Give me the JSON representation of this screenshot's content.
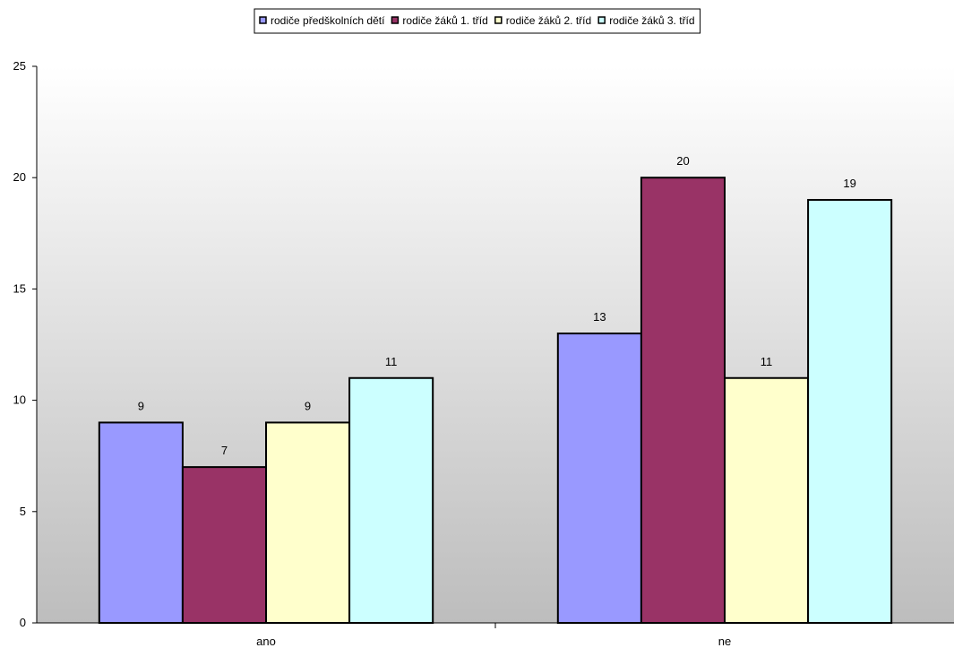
{
  "chart_data": {
    "type": "bar",
    "categories": [
      "ano",
      "ne"
    ],
    "series": [
      {
        "name": "rodiče předškolních dětí",
        "values": [
          9,
          13
        ],
        "color": "#9999FF"
      },
      {
        "name": "rodiče žáků 1. tříd",
        "values": [
          7,
          20
        ],
        "color": "#993366"
      },
      {
        "name": "rodiče žáků 2. tříd",
        "values": [
          9,
          11
        ],
        "color": "#FFFFCC"
      },
      {
        "name": "rodiče žáků 3. tříd",
        "values": [
          11,
          19
        ],
        "color": "#CCFFFF"
      }
    ],
    "title": "",
    "xlabel": "",
    "ylabel": "",
    "ylim": [
      0,
      25
    ],
    "yticks": [
      0,
      5,
      10,
      15,
      20,
      25
    ],
    "data_labels": true,
    "grid": false,
    "legend": "top-center",
    "background": "gradient white to gray"
  }
}
